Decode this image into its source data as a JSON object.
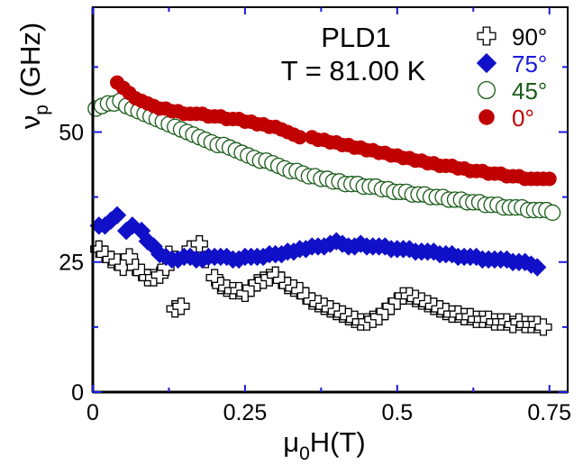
{
  "chart_data": {
    "type": "scatter",
    "annotations": [
      "PLD1",
      "T = 81.00 K"
    ],
    "xlabel": {
      "main": "μ",
      "sub": "0",
      "rest": "H(T)"
    },
    "ylabel": {
      "main": "ν",
      "sub": "p",
      "rest": " (GHz)"
    },
    "xlim": [
      0,
      0.78
    ],
    "ylim": [
      0,
      74
    ],
    "xticks": [
      0,
      0.25,
      0.5,
      0.75
    ],
    "xtick_labels": [
      "0",
      "0.25",
      "0.5",
      "0.75"
    ],
    "yticks": [
      0,
      25,
      50
    ],
    "ytick_labels": [
      "0",
      "25",
      "50"
    ],
    "legend_position": "top-right",
    "series": [
      {
        "name": "90°",
        "marker": "plus-open",
        "color": "#000000",
        "label_color": "#000000",
        "points": [
          [
            0.01,
            27.5
          ],
          [
            0.02,
            26.5
          ],
          [
            0.03,
            25.5
          ],
          [
            0.04,
            25
          ],
          [
            0.05,
            24
          ],
          [
            0.06,
            26
          ],
          [
            0.07,
            24
          ],
          [
            0.08,
            23
          ],
          [
            0.09,
            22
          ],
          [
            0.1,
            22
          ],
          [
            0.11,
            22.5
          ],
          [
            0.12,
            24
          ],
          [
            0.125,
            26.5
          ],
          [
            0.135,
            16
          ],
          [
            0.145,
            16.5
          ],
          [
            0.16,
            27.5
          ],
          [
            0.175,
            28.5
          ],
          [
            0.185,
            25.5
          ],
          [
            0.2,
            22
          ],
          [
            0.21,
            20.5
          ],
          [
            0.22,
            20
          ],
          [
            0.23,
            19.5
          ],
          [
            0.24,
            19.5
          ],
          [
            0.25,
            19
          ],
          [
            0.26,
            20
          ],
          [
            0.27,
            21
          ],
          [
            0.28,
            21.5
          ],
          [
            0.29,
            22
          ],
          [
            0.3,
            22.5
          ],
          [
            0.31,
            21.5
          ],
          [
            0.32,
            20.5
          ],
          [
            0.33,
            20
          ],
          [
            0.34,
            19.5
          ],
          [
            0.35,
            18.5
          ],
          [
            0.36,
            17.5
          ],
          [
            0.37,
            17
          ],
          [
            0.38,
            16.5
          ],
          [
            0.39,
            16
          ],
          [
            0.4,
            15.5
          ],
          [
            0.41,
            15
          ],
          [
            0.42,
            14.5
          ],
          [
            0.43,
            14
          ],
          [
            0.44,
            13.5
          ],
          [
            0.45,
            13.5
          ],
          [
            0.46,
            14
          ],
          [
            0.47,
            14.5
          ],
          [
            0.48,
            15.5
          ],
          [
            0.49,
            16.5
          ],
          [
            0.5,
            17.5
          ],
          [
            0.51,
            18.5
          ],
          [
            0.52,
            18.5
          ],
          [
            0.53,
            18
          ],
          [
            0.54,
            17.5
          ],
          [
            0.55,
            17
          ],
          [
            0.56,
            16.5
          ],
          [
            0.57,
            16
          ],
          [
            0.58,
            15.5
          ],
          [
            0.59,
            15
          ],
          [
            0.6,
            15
          ],
          [
            0.61,
            14.5
          ],
          [
            0.62,
            14.5
          ],
          [
            0.63,
            14
          ],
          [
            0.64,
            14
          ],
          [
            0.65,
            14
          ],
          [
            0.66,
            13.5
          ],
          [
            0.67,
            13.5
          ],
          [
            0.68,
            13.5
          ],
          [
            0.69,
            13
          ],
          [
            0.7,
            13.5
          ],
          [
            0.71,
            13
          ],
          [
            0.72,
            13
          ],
          [
            0.73,
            13
          ],
          [
            0.74,
            12.5
          ]
        ]
      },
      {
        "name": "75°",
        "marker": "diamond-filled",
        "color": "#1010c8",
        "label_color": "#1a1adb",
        "points": [
          [
            0.01,
            32
          ],
          [
            0.02,
            32
          ],
          [
            0.03,
            33
          ],
          [
            0.04,
            34
          ],
          [
            0.055,
            31
          ],
          [
            0.065,
            32
          ],
          [
            0.08,
            31
          ],
          [
            0.09,
            29
          ],
          [
            0.1,
            28
          ],
          [
            0.11,
            26.5
          ],
          [
            0.12,
            26
          ],
          [
            0.13,
            25.5
          ],
          [
            0.14,
            25.5
          ],
          [
            0.15,
            26
          ],
          [
            0.16,
            26
          ],
          [
            0.17,
            25.5
          ],
          [
            0.18,
            25.5
          ],
          [
            0.19,
            26
          ],
          [
            0.2,
            26
          ],
          [
            0.21,
            26
          ],
          [
            0.22,
            26
          ],
          [
            0.23,
            25.5
          ],
          [
            0.24,
            25.5
          ],
          [
            0.25,
            26
          ],
          [
            0.26,
            26
          ],
          [
            0.27,
            26
          ],
          [
            0.28,
            26
          ],
          [
            0.29,
            26.5
          ],
          [
            0.3,
            26.5
          ],
          [
            0.31,
            26.5
          ],
          [
            0.32,
            27
          ],
          [
            0.33,
            27
          ],
          [
            0.34,
            27.5
          ],
          [
            0.35,
            27.5
          ],
          [
            0.36,
            28
          ],
          [
            0.37,
            28
          ],
          [
            0.38,
            28
          ],
          [
            0.39,
            28.5
          ],
          [
            0.4,
            29
          ],
          [
            0.41,
            28.5
          ],
          [
            0.42,
            28
          ],
          [
            0.43,
            28
          ],
          [
            0.44,
            28.5
          ],
          [
            0.45,
            28
          ],
          [
            0.46,
            28
          ],
          [
            0.47,
            28
          ],
          [
            0.48,
            28
          ],
          [
            0.49,
            27.5
          ],
          [
            0.5,
            27.5
          ],
          [
            0.51,
            27.5
          ],
          [
            0.52,
            27.5
          ],
          [
            0.53,
            27
          ],
          [
            0.54,
            27
          ],
          [
            0.55,
            27
          ],
          [
            0.56,
            27
          ],
          [
            0.57,
            26.5
          ],
          [
            0.58,
            26.5
          ],
          [
            0.59,
            26.5
          ],
          [
            0.6,
            26
          ],
          [
            0.61,
            26
          ],
          [
            0.62,
            26
          ],
          [
            0.63,
            26
          ],
          [
            0.64,
            25.5
          ],
          [
            0.65,
            25.5
          ],
          [
            0.66,
            25.5
          ],
          [
            0.67,
            25.5
          ],
          [
            0.68,
            25.5
          ],
          [
            0.69,
            25
          ],
          [
            0.7,
            25
          ],
          [
            0.71,
            25
          ],
          [
            0.72,
            24.5
          ],
          [
            0.73,
            24
          ]
        ]
      },
      {
        "name": "45°",
        "marker": "circle-open",
        "color": "#1a5c1a",
        "label_color": "#1a5c1a",
        "points": [
          [
            0.005,
            54.5
          ],
          [
            0.015,
            55
          ],
          [
            0.025,
            55.5
          ],
          [
            0.035,
            55.5
          ],
          [
            0.045,
            56
          ],
          [
            0.055,
            55
          ],
          [
            0.065,
            54.5
          ],
          [
            0.075,
            54
          ],
          [
            0.085,
            53.5
          ],
          [
            0.095,
            53
          ],
          [
            0.105,
            52.5
          ],
          [
            0.115,
            52
          ],
          [
            0.125,
            51.5
          ],
          [
            0.135,
            51
          ],
          [
            0.145,
            50.5
          ],
          [
            0.155,
            50
          ],
          [
            0.165,
            49.5
          ],
          [
            0.175,
            49
          ],
          [
            0.185,
            48.5
          ],
          [
            0.195,
            48
          ],
          [
            0.205,
            47.5
          ],
          [
            0.215,
            47.5
          ],
          [
            0.225,
            47
          ],
          [
            0.235,
            46.5
          ],
          [
            0.245,
            46
          ],
          [
            0.255,
            45.5
          ],
          [
            0.265,
            45
          ],
          [
            0.275,
            44.5
          ],
          [
            0.285,
            44.5
          ],
          [
            0.295,
            44
          ],
          [
            0.305,
            43.5
          ],
          [
            0.315,
            43
          ],
          [
            0.325,
            42.5
          ],
          [
            0.335,
            42.5
          ],
          [
            0.345,
            42
          ],
          [
            0.355,
            41.5
          ],
          [
            0.365,
            41.5
          ],
          [
            0.375,
            41
          ],
          [
            0.385,
            41
          ],
          [
            0.395,
            40.5
          ],
          [
            0.405,
            40.5
          ],
          [
            0.415,
            40
          ],
          [
            0.425,
            40
          ],
          [
            0.435,
            40
          ],
          [
            0.445,
            39.5
          ],
          [
            0.455,
            39.5
          ],
          [
            0.465,
            39.5
          ],
          [
            0.475,
            39
          ],
          [
            0.485,
            39
          ],
          [
            0.495,
            38.5
          ],
          [
            0.505,
            38.5
          ],
          [
            0.515,
            38.5
          ],
          [
            0.525,
            38
          ],
          [
            0.535,
            38
          ],
          [
            0.545,
            38
          ],
          [
            0.555,
            37.5
          ],
          [
            0.565,
            37.5
          ],
          [
            0.575,
            37.5
          ],
          [
            0.585,
            37
          ],
          [
            0.595,
            37
          ],
          [
            0.605,
            37
          ],
          [
            0.615,
            36.5
          ],
          [
            0.625,
            36.5
          ],
          [
            0.635,
            36.5
          ],
          [
            0.645,
            36
          ],
          [
            0.655,
            36
          ],
          [
            0.665,
            36
          ],
          [
            0.675,
            35.5
          ],
          [
            0.685,
            35.5
          ],
          [
            0.695,
            35.5
          ],
          [
            0.705,
            35.5
          ],
          [
            0.715,
            35
          ],
          [
            0.725,
            35
          ],
          [
            0.735,
            35
          ],
          [
            0.745,
            35
          ],
          [
            0.755,
            34.5
          ]
        ]
      },
      {
        "name": "0°",
        "marker": "circle-filled",
        "color": "#c00000",
        "label_color": "#c00000",
        "points": [
          [
            0.04,
            59.5
          ],
          [
            0.05,
            58.5
          ],
          [
            0.06,
            57.5
          ],
          [
            0.07,
            56.5
          ],
          [
            0.08,
            56
          ],
          [
            0.09,
            55.5
          ],
          [
            0.1,
            55
          ],
          [
            0.11,
            54.5
          ],
          [
            0.12,
            54.5
          ],
          [
            0.13,
            54
          ],
          [
            0.14,
            54
          ],
          [
            0.15,
            53.5
          ],
          [
            0.16,
            53.5
          ],
          [
            0.17,
            53.5
          ],
          [
            0.18,
            53.5
          ],
          [
            0.19,
            53
          ],
          [
            0.2,
            53
          ],
          [
            0.21,
            53
          ],
          [
            0.22,
            52.5
          ],
          [
            0.23,
            52.5
          ],
          [
            0.24,
            52.5
          ],
          [
            0.25,
            52
          ],
          [
            0.26,
            52
          ],
          [
            0.27,
            51.5
          ],
          [
            0.28,
            51.5
          ],
          [
            0.29,
            51
          ],
          [
            0.3,
            51
          ],
          [
            0.31,
            50.5
          ],
          [
            0.32,
            50
          ],
          [
            0.33,
            49.5
          ],
          [
            0.34,
            49
          ],
          [
            0.36,
            49
          ],
          [
            0.37,
            48.5
          ],
          [
            0.38,
            48.5
          ],
          [
            0.39,
            48
          ],
          [
            0.4,
            48
          ],
          [
            0.41,
            47.5
          ],
          [
            0.42,
            47.5
          ],
          [
            0.43,
            47
          ],
          [
            0.44,
            47
          ],
          [
            0.45,
            46.5
          ],
          [
            0.46,
            46.5
          ],
          [
            0.47,
            46
          ],
          [
            0.48,
            46
          ],
          [
            0.49,
            45.5
          ],
          [
            0.5,
            45.5
          ],
          [
            0.51,
            45
          ],
          [
            0.52,
            45
          ],
          [
            0.53,
            44.5
          ],
          [
            0.54,
            44.5
          ],
          [
            0.55,
            44
          ],
          [
            0.56,
            44
          ],
          [
            0.57,
            43.5
          ],
          [
            0.58,
            43.5
          ],
          [
            0.59,
            43.5
          ],
          [
            0.6,
            43
          ],
          [
            0.61,
            43
          ],
          [
            0.62,
            42.5
          ],
          [
            0.63,
            42.5
          ],
          [
            0.64,
            42.5
          ],
          [
            0.65,
            42
          ],
          [
            0.66,
            42
          ],
          [
            0.67,
            42
          ],
          [
            0.68,
            41.5
          ],
          [
            0.69,
            41.5
          ],
          [
            0.7,
            41.5
          ],
          [
            0.71,
            41
          ],
          [
            0.72,
            41
          ],
          [
            0.73,
            41
          ],
          [
            0.74,
            41
          ],
          [
            0.75,
            41
          ]
        ]
      }
    ]
  }
}
